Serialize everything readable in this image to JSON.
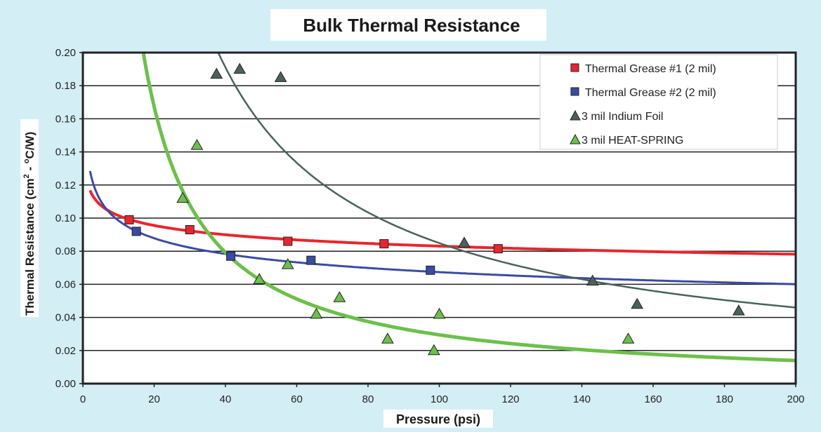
{
  "chart_data": {
    "type": "scatter",
    "title": "Bulk Thermal Resistance",
    "xlabel": "Pressure (psi)",
    "ylabel_main": "Thermal Resistance (cm",
    "ylabel_sup": "2",
    "ylabel_mid": " - ",
    "ylabel_sup2": "o",
    "ylabel_end": "C/W)",
    "xlim": [
      0,
      200
    ],
    "ylim": [
      0,
      0.2
    ],
    "xticks": [
      "0",
      "20",
      "40",
      "60",
      "80",
      "100",
      "120",
      "140",
      "160",
      "180",
      "200"
    ],
    "yticks": [
      "0.00",
      "0.02",
      "0.04",
      "0.06",
      "0.08",
      "0.10",
      "0.12",
      "0.14",
      "0.16",
      "0.18",
      "0.20"
    ],
    "grid": "horizontal",
    "legend_position": "top-right",
    "background_color": "#d3eef5",
    "series": [
      {
        "name": "Thermal Grease #1 (2 mil)",
        "marker": "square",
        "color": "#e8262e",
        "trend": {
          "type": "power",
          "a": 0.124,
          "b": -0.087
        },
        "points": [
          [
            13,
            0.099
          ],
          [
            30,
            0.093
          ],
          [
            57.5,
            0.086
          ],
          [
            84.5,
            0.0845
          ],
          [
            116.5,
            0.0815
          ]
        ]
      },
      {
        "name": "Thermal Grease #2 (2 mil)",
        "marker": "square",
        "color": "#3a4ba3",
        "trend": {
          "type": "power",
          "a": 0.144,
          "b": -0.165
        },
        "points": [
          [
            15,
            0.092
          ],
          [
            41.5,
            0.077
          ],
          [
            64,
            0.0745
          ],
          [
            97.5,
            0.0685
          ]
        ]
      },
      {
        "name": "3 mil Indium Foil",
        "marker": "triangle",
        "color": "#4a625c",
        "trend": {
          "type": "power",
          "a": 5.0,
          "b": -0.885
        },
        "points": [
          [
            37.5,
            0.187
          ],
          [
            44,
            0.19
          ],
          [
            55.5,
            0.185
          ],
          [
            107,
            0.085
          ],
          [
            143,
            0.062
          ],
          [
            155.5,
            0.048
          ],
          [
            184,
            0.044
          ]
        ]
      },
      {
        "name": "3 mil HEAT-SPRING",
        "marker": "triangle",
        "color": "#6cc04a",
        "trend": {
          "type": "power",
          "a": 4.24,
          "b": -1.079
        },
        "points": [
          [
            28,
            0.112
          ],
          [
            32,
            0.144
          ],
          [
            49.5,
            0.063
          ],
          [
            57.5,
            0.072
          ],
          [
            65.5,
            0.042
          ],
          [
            72,
            0.052
          ],
          [
            85.5,
            0.027
          ],
          [
            98.5,
            0.02
          ],
          [
            100,
            0.042
          ],
          [
            153,
            0.027
          ]
        ]
      }
    ]
  }
}
